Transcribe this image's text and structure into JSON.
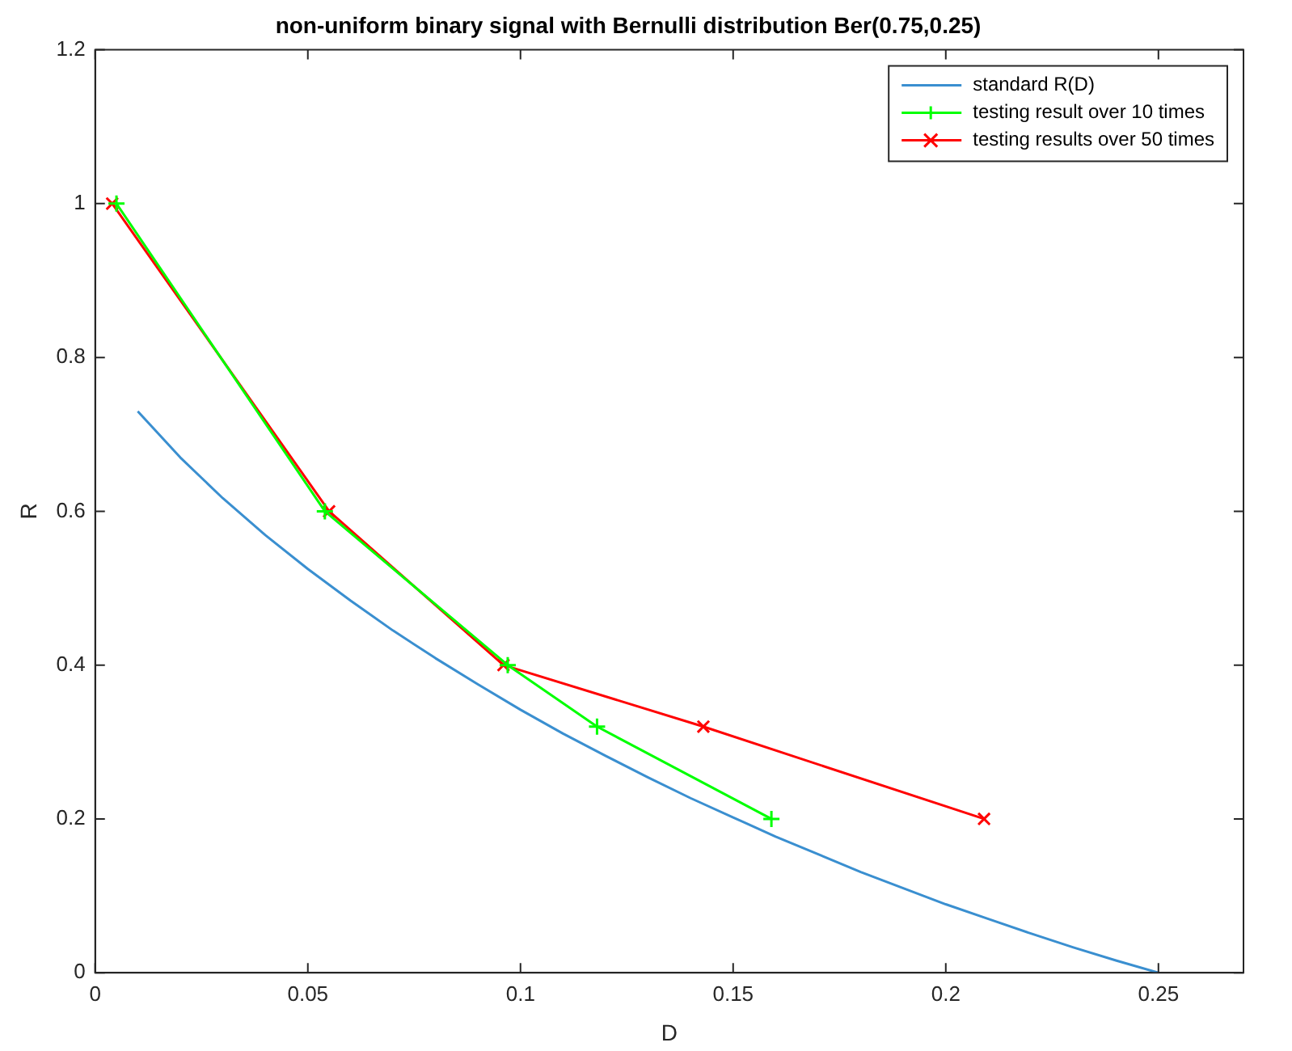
{
  "chart_data": {
    "type": "line",
    "title": "non-uniform binary signal with Bernulli distribution Ber(0.75,0.25)",
    "xlabel": "D",
    "ylabel": "R",
    "xlim": [
      0,
      0.27
    ],
    "xticks": [
      0,
      0.05,
      0.1,
      0.15,
      0.2,
      0.25
    ],
    "ylim": [
      0,
      1.2
    ],
    "yticks": [
      0,
      0.2,
      0.4,
      0.6,
      0.8,
      1,
      1.2
    ],
    "grid": false,
    "legend": "top right",
    "series": [
      {
        "name": "standard R(D)",
        "color": "#3a8fd0",
        "marker": "none",
        "x": [
          0.01,
          0.02,
          0.03,
          0.04,
          0.05,
          0.06,
          0.07,
          0.08,
          0.09,
          0.1,
          0.11,
          0.12,
          0.13,
          0.14,
          0.15,
          0.16,
          0.17,
          0.18,
          0.19,
          0.2,
          0.21,
          0.22,
          0.23,
          0.24,
          0.25
        ],
        "values": [
          0.73,
          0.67,
          0.617,
          0.569,
          0.525,
          0.484,
          0.445,
          0.409,
          0.375,
          0.342,
          0.311,
          0.282,
          0.254,
          0.227,
          0.202,
          0.177,
          0.154,
          0.131,
          0.11,
          0.089,
          0.07,
          0.051,
          0.033,
          0.016,
          0
        ]
      },
      {
        "name": "testing result over 10 times",
        "color": "#00ff00",
        "marker": "cross",
        "x": [
          0.005,
          0.054,
          0.097,
          0.118,
          0.159
        ],
        "values": [
          1,
          0.6,
          0.4,
          0.32,
          0.2
        ]
      },
      {
        "name": "testing results over 50 times",
        "color": "#ff0000",
        "marker": "x",
        "x": [
          0.004,
          0.055,
          0.096,
          0.143,
          0.209
        ],
        "values": [
          1,
          0.6,
          0.4,
          0.32,
          0.2
        ]
      }
    ]
  }
}
